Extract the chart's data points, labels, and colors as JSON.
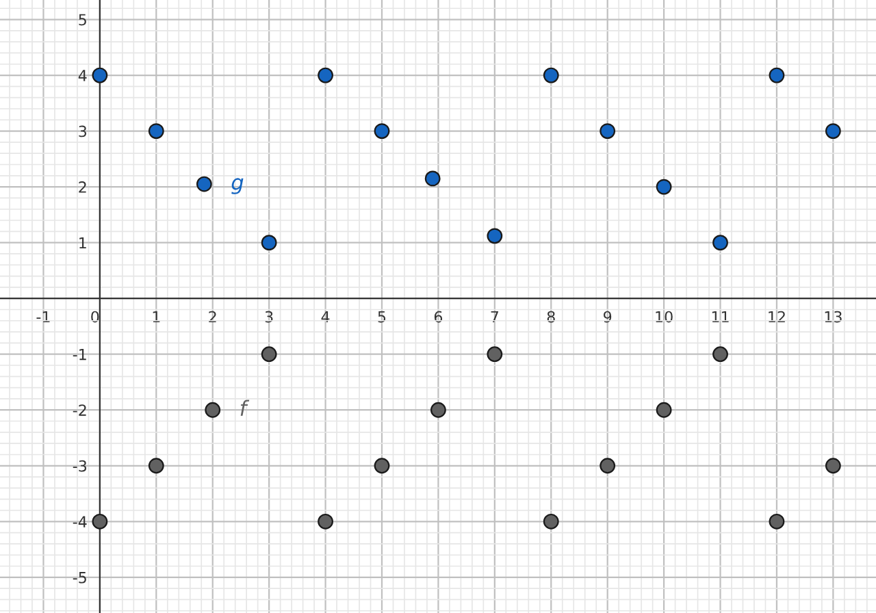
{
  "chart_data": {
    "type": "scatter",
    "xlim": [
      -1.77,
      13.76
    ],
    "ylim": [
      -5.64,
      5.35
    ],
    "xticks": [
      -1,
      0,
      1,
      2,
      3,
      4,
      5,
      6,
      7,
      8,
      9,
      10,
      11,
      12,
      13
    ],
    "yticks": [
      -5,
      -4,
      -3,
      -2,
      -1,
      {
        "value": 0,
        "label": null
      },
      1,
      2,
      3,
      4,
      5
    ],
    "grid": true,
    "marker": "circle",
    "legend": false,
    "series": [
      {
        "name": "g",
        "color": "#1565c0",
        "x": [
          0,
          1,
          1.85,
          3,
          4,
          5,
          5.9,
          7,
          8,
          9,
          10,
          11,
          12,
          13
        ],
        "values": [
          4,
          3,
          2.05,
          1,
          4,
          3,
          2.15,
          1.12,
          4,
          3,
          2,
          1,
          4,
          3
        ]
      },
      {
        "name": "f",
        "color": "#616161",
        "x": [
          0,
          1,
          2,
          3,
          4,
          5,
          6,
          7,
          8,
          9,
          10,
          11,
          12,
          13
        ],
        "values": [
          -4,
          -3,
          -2,
          -1,
          -4,
          -3,
          -2,
          -1,
          -4,
          -3,
          -2,
          -1,
          -4,
          -3
        ]
      }
    ]
  }
}
